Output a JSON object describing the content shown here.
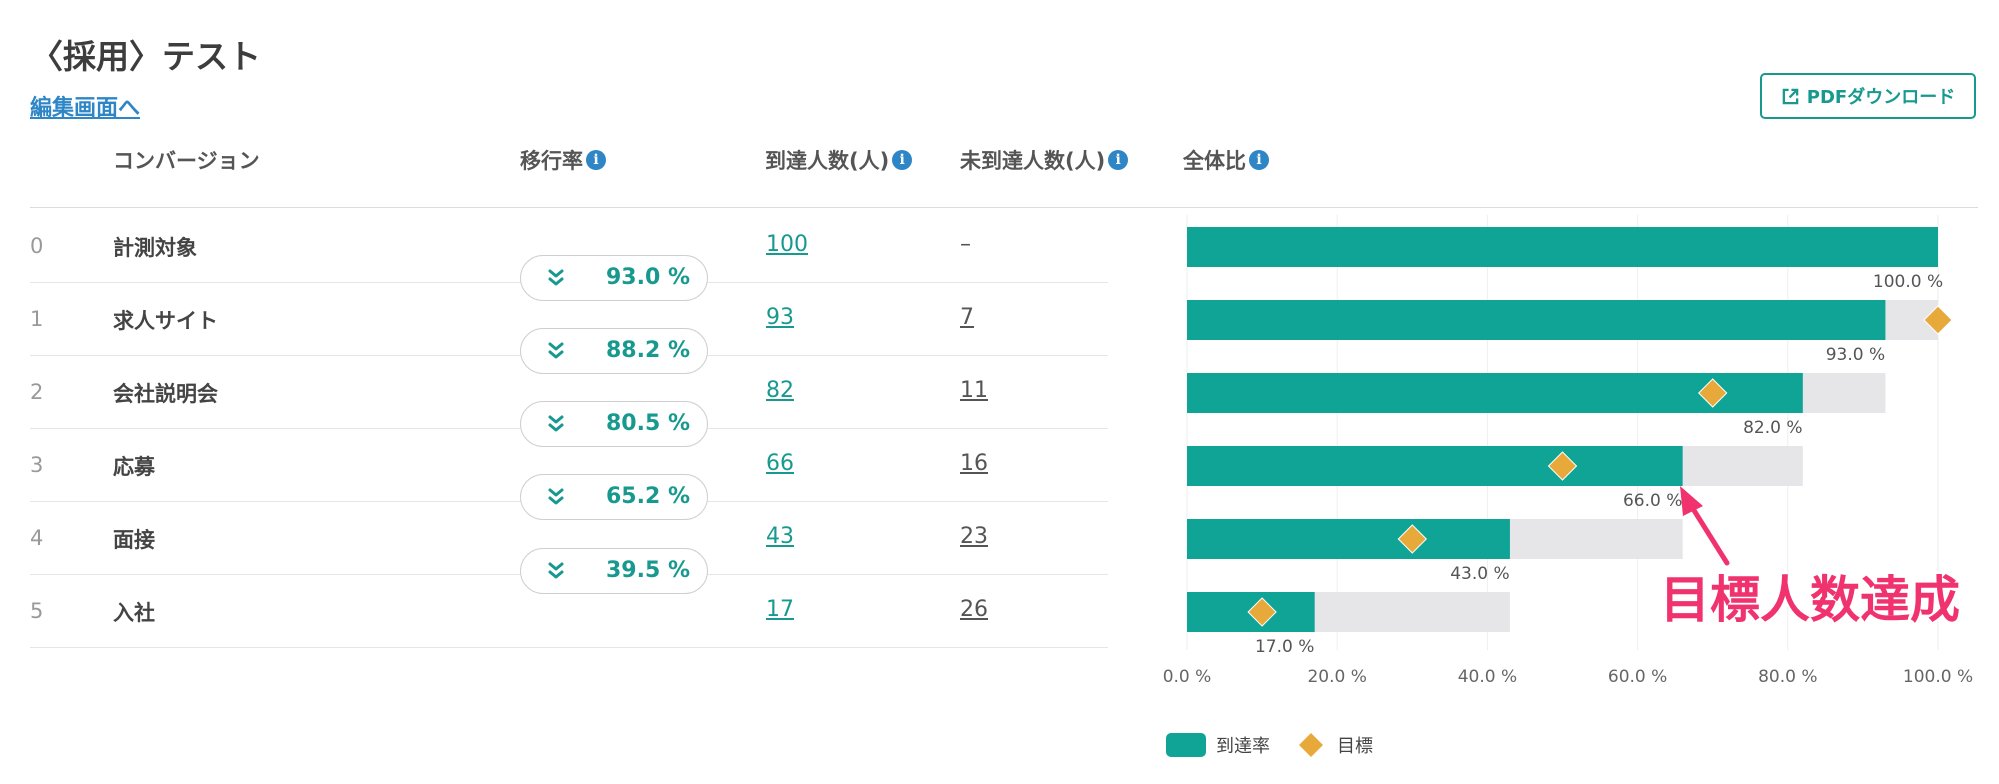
{
  "page": {
    "title": "〈採用〉テスト",
    "edit_link": "編集画面へ"
  },
  "toolbar": {
    "pdf_label": "PDFダウンロード"
  },
  "table": {
    "headers": {
      "conversion": "コンバージョン",
      "transition_rate": "移行率",
      "reached": "到達人数(人)",
      "not_reached": "未到達人数(人)",
      "overall_ratio": "全体比"
    },
    "rows": [
      {
        "index": "0",
        "label": "計測対象",
        "reached": "100",
        "not_reached": "–"
      },
      {
        "index": "1",
        "label": "求人サイト",
        "reached": "93",
        "not_reached": "7"
      },
      {
        "index": "2",
        "label": "会社説明会",
        "reached": "82",
        "not_reached": "11"
      },
      {
        "index": "3",
        "label": "応募",
        "reached": "66",
        "not_reached": "16"
      },
      {
        "index": "4",
        "label": "面接",
        "reached": "43",
        "not_reached": "23"
      },
      {
        "index": "5",
        "label": "入社",
        "reached": "17",
        "not_reached": "26"
      }
    ],
    "transition_rates": [
      "93.0 %",
      "88.2 %",
      "80.5 %",
      "65.2 %",
      "39.5 %"
    ]
  },
  "chart_data": {
    "type": "bar",
    "orientation": "horizontal",
    "categories": [
      "計測対象",
      "求人サイト",
      "会社説明会",
      "応募",
      "面接",
      "入社"
    ],
    "series": [
      {
        "name": "到達率",
        "values": [
          100.0,
          93.0,
          82.0,
          66.0,
          43.0,
          17.0
        ],
        "color": "#0fa496"
      },
      {
        "name": "目標",
        "values": [
          null,
          100,
          70,
          50,
          30,
          10
        ],
        "color": "#e8a93b"
      }
    ],
    "background_values": [
      100.0,
      100.0,
      93.0,
      82.0,
      66.0,
      43.0
    ],
    "background_color": "#e6e6e8",
    "data_labels": [
      "100.0 %",
      "93.0 %",
      "82.0 %",
      "66.0 %",
      "43.0 %",
      "17.0 %"
    ],
    "xlim": [
      0,
      100
    ],
    "x_ticks": [
      "0.0 %",
      "20.0 %",
      "40.0 %",
      "60.0 %",
      "80.0 %",
      "100.0 %"
    ],
    "legend_placement": "bottom"
  },
  "annotation": {
    "text": "目標人数達成",
    "color": "#f0326e"
  }
}
